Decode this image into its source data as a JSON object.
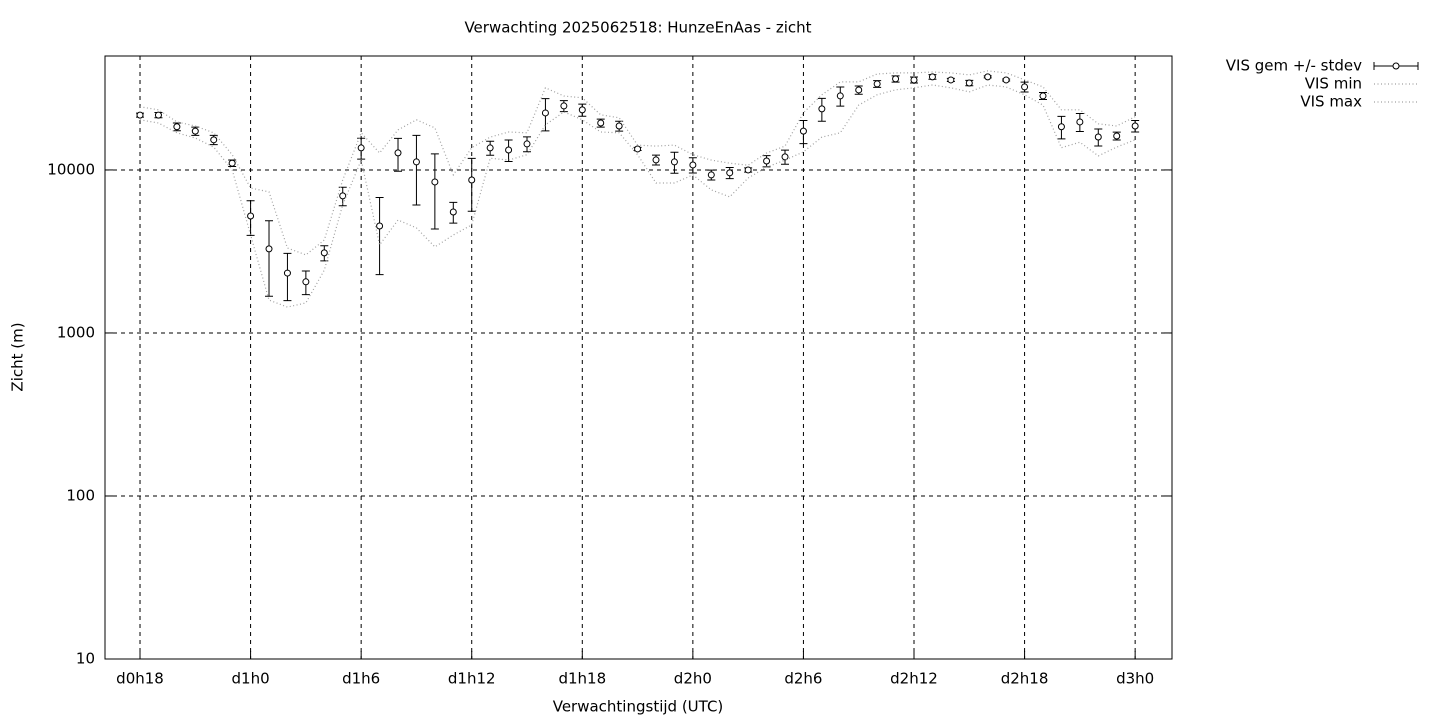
{
  "chart_data": {
    "type": "errorbar",
    "title": "Verwachting 2025062518: HunzeEnAas - zicht",
    "x_label": "Verwachtingstijd (UTC)",
    "y_label": "Zicht (m)",
    "log_y": true,
    "grid": true,
    "legend": "outside-top-right",
    "xlim": [
      16.1,
      74
    ],
    "ylim": [
      10,
      50000
    ],
    "xticks": [
      {
        "value": 18,
        "label": "d0h18"
      },
      {
        "value": 24,
        "label": "d1h0"
      },
      {
        "value": 30,
        "label": "d1h6"
      },
      {
        "value": 36,
        "label": "d1h12"
      },
      {
        "value": 42,
        "label": "d1h18"
      },
      {
        "value": 48,
        "label": "d2h0"
      },
      {
        "value": 54,
        "label": "d2h6"
      },
      {
        "value": 60,
        "label": "d2h12"
      },
      {
        "value": 66,
        "label": "d2h18"
      },
      {
        "value": 72,
        "label": "d3h0"
      }
    ],
    "yticks": [
      10,
      100,
      1000,
      10000
    ],
    "x": [
      18,
      19,
      20,
      21,
      22,
      23,
      24,
      25,
      26,
      27,
      28,
      29,
      30,
      31,
      32,
      33,
      34,
      35,
      36,
      37,
      38,
      39,
      40,
      41,
      42,
      43,
      44,
      45,
      46,
      47,
      48,
      49,
      50,
      51,
      52,
      53,
      54,
      55,
      56,
      57,
      58,
      59,
      60,
      61,
      62,
      63,
      64,
      65,
      66,
      67,
      68,
      69,
      70,
      71,
      72
    ],
    "series": [
      {
        "name": "VIS gem +/- stdev",
        "color": "#000000",
        "values": [
          21700,
          21700,
          18400,
          17300,
          15300,
          11000,
          5220,
          3280,
          2330,
          2060,
          3100,
          6930,
          13650,
          4530,
          12720,
          11200,
          8440,
          5520,
          8680,
          13650,
          13260,
          14440,
          22370,
          24700,
          23350,
          19400,
          18600,
          13450,
          11520,
          11200,
          10730,
          9320,
          9600,
          10000,
          11350,
          12030,
          17300,
          23700,
          28450,
          30950,
          33700,
          36190,
          35650,
          37230,
          35650,
          34150,
          37230,
          35650,
          32300,
          28450,
          18400,
          19700,
          15930,
          16160,
          18600
        ],
        "errors": [
          600,
          800,
          1000,
          1000,
          1000,
          500,
          1250,
          1600,
          750,
          340,
          330,
          900,
          2000,
          2250,
          2900,
          5100,
          4100,
          800,
          3100,
          1350,
          2000,
          1500,
          5000,
          1900,
          2000,
          1100,
          1300,
          300,
          800,
          1650,
          1150,
          650,
          750,
          300,
          900,
          1200,
          2800,
          3800,
          3800,
          1800,
          1600,
          1600,
          1500,
          1200,
          800,
          1300,
          500,
          500,
          2250,
          1400,
          2900,
          2500,
          1900,
          900,
          1500
        ]
      },
      {
        "name": "VIS min",
        "color": "#a0a0a0",
        "values": [
          20300,
          19400,
          16900,
          15700,
          13800,
          10000,
          3990,
          1590,
          1440,
          1530,
          2430,
          6100,
          11500,
          3470,
          4930,
          4410,
          3370,
          3990,
          4600,
          11800,
          11500,
          12400,
          18900,
          22700,
          20300,
          17100,
          16900,
          12400,
          8320,
          8320,
          9320,
          7540,
          6830,
          8930,
          10400,
          11500,
          12900,
          15900,
          16900,
          25000,
          28900,
          31000,
          31900,
          33200,
          31900,
          30100,
          33200,
          32300,
          28900,
          25000,
          13700,
          14800,
          12200,
          13800,
          15300
        ]
      },
      {
        "name": "VIS max",
        "color": "#a0a0a0",
        "values": [
          24400,
          23400,
          19700,
          18600,
          16900,
          12400,
          7750,
          7330,
          3320,
          3010,
          3720,
          8680,
          16900,
          12700,
          17600,
          20300,
          18100,
          9320,
          13700,
          15900,
          17100,
          16900,
          31900,
          28400,
          27700,
          21800,
          20900,
          14200,
          14000,
          14200,
          12400,
          11500,
          11000,
          10700,
          12700,
          14000,
          22400,
          28900,
          34700,
          34700,
          38800,
          39400,
          39400,
          39900,
          39400,
          38300,
          40500,
          39400,
          35700,
          32300,
          23400,
          23400,
          19200,
          18600,
          21200
        ]
      }
    ]
  }
}
